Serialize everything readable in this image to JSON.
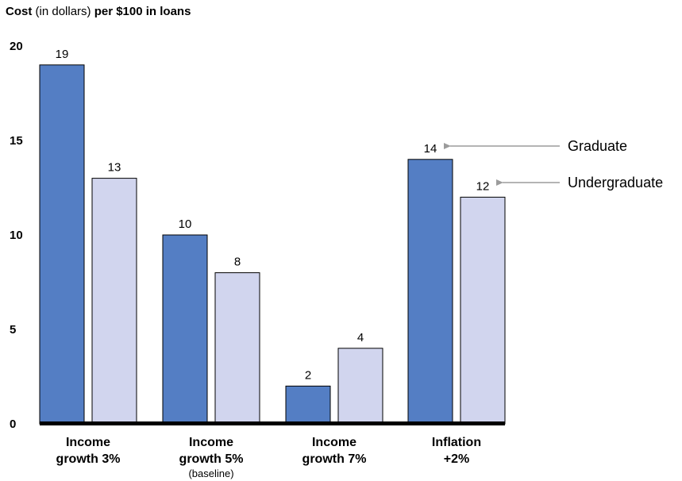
{
  "title": {
    "part1": "Cost",
    "part2": " (in dollars) ",
    "part3": "per $100 in loans"
  },
  "colors": {
    "graduate": "#547EC4",
    "undergraduate": "#D1D5EE",
    "baseline": "#000000",
    "arrow": "#9C9C9C"
  },
  "chart_data": {
    "type": "bar",
    "title": "Cost (in dollars) per $100 in loans",
    "xlabel": "",
    "ylabel": "",
    "ylim": [
      0,
      20
    ],
    "yticks": [
      0,
      5,
      10,
      15,
      20
    ],
    "grid": false,
    "categories": [
      {
        "line1": "Income",
        "line2": "growth 3%",
        "sub": ""
      },
      {
        "line1": "Income",
        "line2": "growth 5%",
        "sub": "(baseline)"
      },
      {
        "line1": "Income",
        "line2": "growth 7%",
        "sub": ""
      },
      {
        "line1": "Inflation",
        "line2": "+2%",
        "sub": ""
      }
    ],
    "series": [
      {
        "name": "Graduate",
        "values": [
          19,
          10,
          2,
          14
        ]
      },
      {
        "name": "Undergraduate",
        "values": [
          13,
          8,
          4,
          12
        ]
      }
    ],
    "legend": {
      "placement": "right, arrows pointing to last category bars"
    }
  }
}
